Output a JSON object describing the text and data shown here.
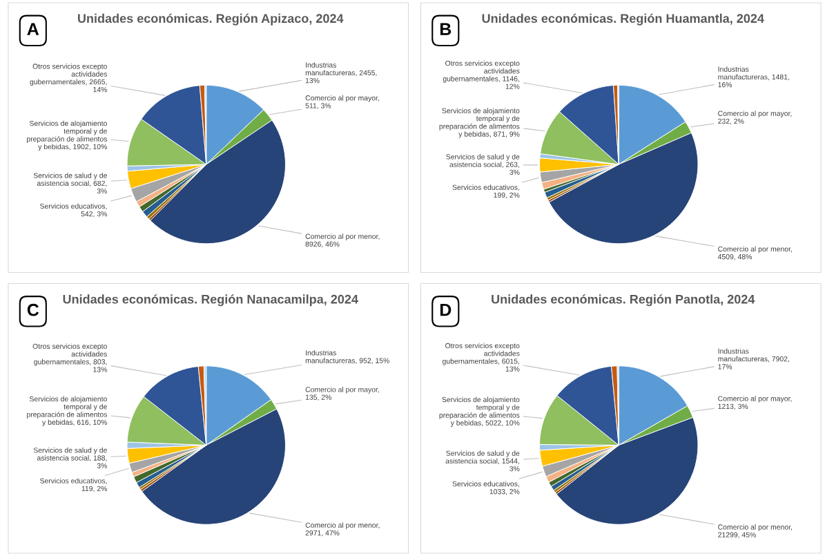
{
  "chart_data": [
    {
      "type": "pie",
      "title": "Unidades económicas. Región Apizaco, 2024",
      "annotations": [
        "A"
      ],
      "categories": [
        "Industrias manufactureras, 2455, 13%",
        "Comercio al por mayor, 511, 3%",
        "Comercio al por menor, 8926, 46%",
        null,
        null,
        null,
        null,
        null,
        "Servicios educativos, 542, 3%",
        "Servicios de salud y de asistencia social, 682, 3%",
        null,
        "Servicios de alojamiento temporal y de preparación de alimentos y bebidas, 1902, 10%",
        "Otros servicios excepto actividades gubernamentales, 2665, 14%",
        null,
        null
      ],
      "values": [
        2455,
        511,
        8926,
        80,
        120,
        250,
        220,
        230,
        542,
        682,
        200,
        1902,
        2665,
        190,
        60
      ],
      "colors": [
        "#5b9bd5",
        "#70ad47",
        "#264478",
        "#9e480e",
        "#997300",
        "#255e91",
        "#43682b",
        "#f4b183",
        "#a5a5a5",
        "#ffc000",
        "#9dc3e6",
        "#8fbf5f",
        "#2f5597",
        "#c55a11",
        "#bdd7ee"
      ]
    },
    {
      "type": "pie",
      "title": "Unidades económicas. Región Huamantla, 2024",
      "annotations": [
        "B"
      ],
      "categories": [
        "Industrias manufactureras, 1481, 16%",
        "Comercio al por mayor, 232, 2%",
        "Comercio al por menor, 4509, 48%",
        null,
        null,
        null,
        null,
        null,
        "Servicios educativos, 199, 2%",
        "Servicios de salud y de asistencia social, 263, 3%",
        null,
        "Servicios de alojamiento temporal y de preparación de alimentos y bebidas, 871, 9%",
        "Otros servicios excepto actividades gubernamentales, 1146, 12%",
        null,
        null
      ],
      "values": [
        1481,
        232,
        4509,
        40,
        50,
        110,
        60,
        130,
        199,
        263,
        80,
        871,
        1146,
        80,
        20
      ],
      "colors": [
        "#5b9bd5",
        "#70ad47",
        "#264478",
        "#9e480e",
        "#997300",
        "#255e91",
        "#43682b",
        "#f4b183",
        "#a5a5a5",
        "#ffc000",
        "#9dc3e6",
        "#8fbf5f",
        "#2f5597",
        "#c55a11",
        "#bdd7ee"
      ]
    },
    {
      "type": "pie",
      "title": "Unidades económicas. Región Nanacamilpa, 2024",
      "annotations": [
        "C"
      ],
      "categories": [
        "Industrias manufactureras, 952, 15%",
        "Comercio al por mayor, 135, 2%",
        "Comercio al por menor, 2971, 47%",
        null,
        null,
        null,
        null,
        null,
        "Servicios educativos, 119, 2%",
        "Servicios de salud y de asistencia social, 188, 3%",
        null,
        "Servicios de alojamiento temporal y de preparación de alimentos y bebidas, 616, 10%",
        "Otros servicios excepto actividades gubernamentales, 803, 13%",
        null,
        null
      ],
      "values": [
        952,
        135,
        2971,
        30,
        30,
        70,
        80,
        60,
        119,
        188,
        80,
        616,
        803,
        70,
        30
      ],
      "colors": [
        "#5b9bd5",
        "#70ad47",
        "#264478",
        "#9e480e",
        "#997300",
        "#255e91",
        "#43682b",
        "#f4b183",
        "#a5a5a5",
        "#ffc000",
        "#9dc3e6",
        "#8fbf5f",
        "#2f5597",
        "#c55a11",
        "#bdd7ee"
      ]
    },
    {
      "type": "pie",
      "title": "Unidades económicas. Región Panotla, 2024",
      "annotations": [
        "D"
      ],
      "categories": [
        "Industrias manufactureras, 7902, 17%",
        "Comercio al por mayor, 1213, 3%",
        "Comercio al por menor, 21299, 45%",
        null,
        null,
        null,
        null,
        null,
        "Servicios educativos, 1033, 2%",
        "Servicios de salud y de asistencia social, 1544, 3%",
        null,
        "Servicios de alojamiento temporal y de preparación de alimentos y bebidas, 5022, 10%",
        "Otros servicios excepto actividades gubernamentales, 6015, 13%",
        null,
        null
      ],
      "values": [
        7902,
        1213,
        21299,
        200,
        250,
        450,
        450,
        600,
        1033,
        1544,
        550,
        5022,
        6015,
        550,
        150
      ],
      "colors": [
        "#5b9bd5",
        "#70ad47",
        "#264478",
        "#9e480e",
        "#997300",
        "#255e91",
        "#43682b",
        "#f4b183",
        "#a5a5a5",
        "#ffc000",
        "#9dc3e6",
        "#8fbf5f",
        "#2f5597",
        "#c55a11",
        "#bdd7ee"
      ]
    }
  ]
}
